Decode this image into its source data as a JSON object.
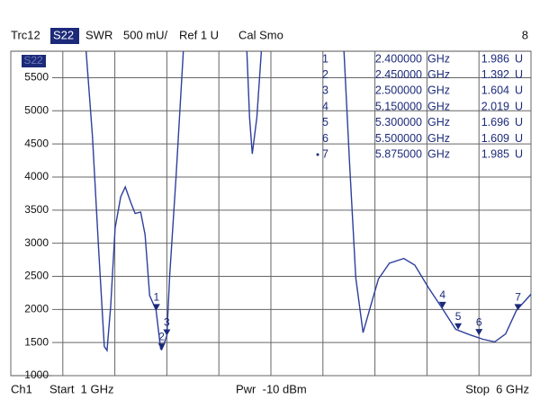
{
  "header": {
    "trace": "Trc12",
    "param": "S22",
    "format": "SWR",
    "scale": "500 mU/",
    "ref": "Ref 1 U",
    "cal": "Cal Smo",
    "index": "8"
  },
  "chart_data": {
    "type": "line",
    "x": [
      1.724,
      1.785,
      1.846,
      1.899,
      1.925,
      1.96,
      2.003,
      2.056,
      2.1,
      2.152,
      2.195,
      2.248,
      2.291,
      2.335,
      2.396,
      2.44,
      2.45,
      2.466,
      2.5,
      2.527,
      2.588,
      2.658,
      2.7,
      3.269,
      3.295,
      3.321,
      3.365,
      3.408,
      3.5,
      4.202,
      4.255,
      4.316,
      4.386,
      4.464,
      4.534,
      4.639,
      4.778,
      4.883,
      5.014,
      5.145,
      5.276,
      5.407,
      5.538,
      5.651,
      5.756,
      5.86,
      6.0
    ],
    "series": [
      {
        "color": "#2e3f9c",
        "values": [
          5900,
          4620,
          2860,
          1440,
          1380,
          2050,
          3230,
          3700,
          3850,
          3620,
          3450,
          3470,
          3130,
          2210,
          1990,
          1405,
          1392,
          1450,
          1604,
          2500,
          4000,
          5900,
          null,
          5900,
          4900,
          4350,
          4900,
          5900,
          null,
          5900,
          4240,
          2480,
          1650,
          2080,
          2460,
          2700,
          2770,
          2670,
          2330,
          2020,
          1700,
          1620,
          1550,
          1510,
          1630,
          1985,
          2230
        ]
      }
    ],
    "xlim": [
      1,
      6
    ],
    "xticks": [
      1,
      1.5,
      2,
      2.5,
      3,
      3.5,
      4,
      4.5,
      5,
      5.5,
      6
    ],
    "ylim": [
      1000,
      5900
    ],
    "yticks": [
      1000,
      1500,
      2000,
      2500,
      3000,
      3500,
      4000,
      4500,
      5000,
      5500
    ],
    "grid": true,
    "markers": {
      "color": "#1c2a7a",
      "names": [
        "1",
        "2",
        "3",
        "4",
        "5",
        "6",
        "7"
      ],
      "x": [
        2.4,
        2.45,
        2.5,
        5.15,
        5.3,
        5.5,
        5.875
      ],
      "x_labels": [
        "2.400000",
        "2.450000",
        "2.500000",
        "5.150000",
        "5.300000",
        "5.500000",
        "5.875000"
      ],
      "x_unit": "GHz",
      "values": [
        1986,
        1392,
        1604,
        2019,
        1696,
        1609,
        1985
      ],
      "value_labels": [
        "1.986",
        "1.392",
        "1.604",
        "2.019",
        "1.696",
        "1.609",
        "1.985"
      ],
      "value_unit": "U"
    }
  },
  "footer": {
    "channel": "Ch1",
    "start": "Start  1 GHz",
    "power": "Pwr  -10 dBm",
    "stop": "Stop  6 GHz"
  }
}
